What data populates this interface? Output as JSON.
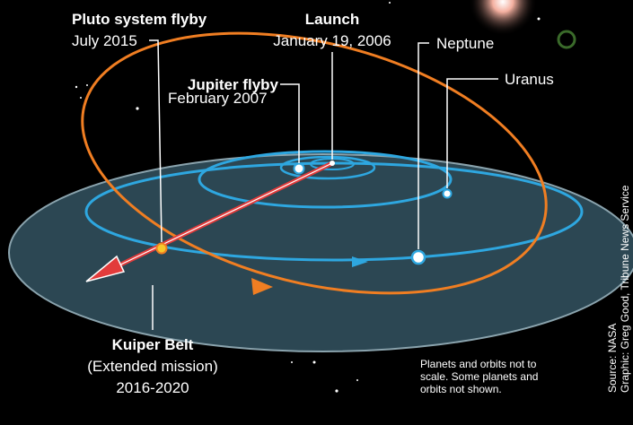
{
  "labels": {
    "pluto": {
      "title": "Pluto system flyby",
      "date": "July 2015"
    },
    "launch": {
      "title": "Launch",
      "date": "January 19, 2006"
    },
    "jupiter": {
      "title": "Jupiter flyby",
      "date": "February 2007"
    },
    "neptune": "Neptune",
    "uranus": "Uranus",
    "kuiper": {
      "title": "Kuiper Belt",
      "lines": [
        "(Extended mission)",
        "2016-2020"
      ]
    }
  },
  "note": [
    "Planets and orbits not to",
    "scale. Some planets and",
    "orbits not shown."
  ],
  "credits": [
    "Source: NASA",
    "Graphic: Greg Good, Tribune News Service"
  ]
}
